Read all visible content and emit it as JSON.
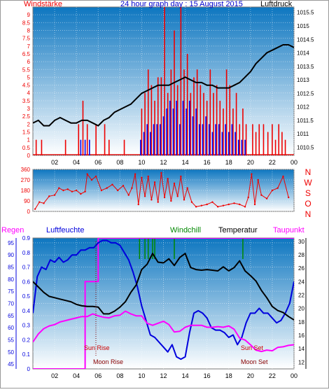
{
  "title": "24 hour graph day : 15 August 2015",
  "colors": {
    "wind": "#ee0000",
    "gust": "#0000ee",
    "pressure": "#000000",
    "humidity": "#0000dd",
    "temperature": "#000000",
    "windchill": "#008800",
    "dewpoint": "#ff00ff",
    "rain": "#ff00ff",
    "sun": "#cc0000",
    "moon": "#880000",
    "plotTop": "#0d76c0",
    "plotBottom": "#ffffff",
    "frame": "#888888"
  },
  "chart_data": [
    {
      "type": "line",
      "panel": "wind_pressure",
      "labels": {
        "left": "Windstärke",
        "right": "Luftdruck"
      },
      "x_tick_labels": [
        "02",
        "04",
        "06",
        "08",
        "10",
        "12",
        "14",
        "16",
        "18",
        "20",
        "22",
        "00"
      ],
      "y_left": {
        "ylim": [
          0,
          9.5
        ],
        "ticks": [
          "0",
          "0.5",
          "1",
          "1.5",
          "2",
          "2.5",
          "3",
          "3.5",
          "4",
          "4.5",
          "5",
          "5.5",
          "6",
          "6.5",
          "7",
          "7.5",
          "8",
          "8.5",
          "9"
        ]
      },
      "y_right": {
        "ylim": [
          1010.2,
          1015.7
        ],
        "ticks": [
          "1010.5",
          "1011",
          "1011.5",
          "1012",
          "1012.5",
          "1013",
          "1013.5",
          "1014",
          "1014.5",
          "1015",
          "1015.5"
        ]
      },
      "series": [
        {
          "role": "pressure",
          "x": [
            0,
            0.5,
            1,
            1.5,
            2,
            2.5,
            3,
            3.5,
            4,
            4.5,
            5,
            5.5,
            6,
            6.5,
            7,
            7.5,
            8,
            8.5,
            9,
            9.5,
            10,
            10.5,
            11,
            11.5,
            12,
            12.5,
            13,
            13.5,
            14,
            14.5,
            15,
            15.5,
            16,
            16.5,
            17,
            17.5,
            18,
            18.5,
            19,
            19.5,
            20,
            20.5,
            21,
            21.5,
            22,
            22.5,
            23,
            23.5,
            24
          ],
          "y": [
            1011.4,
            1011.5,
            1011.3,
            1011.3,
            1011.5,
            1011.6,
            1011.5,
            1011.4,
            1011.4,
            1011.5,
            1011.5,
            1011.4,
            1011.3,
            1011.5,
            1011.6,
            1011.8,
            1011.9,
            1012.0,
            1012.1,
            1012.3,
            1012.5,
            1012.6,
            1012.7,
            1012.8,
            1012.8,
            1012.8,
            1012.9,
            1013.0,
            1013.1,
            1013.0,
            1012.9,
            1012.9,
            1012.8,
            1012.8,
            1012.7,
            1012.7,
            1012.7,
            1012.8,
            1012.9,
            1013.1,
            1013.3,
            1013.6,
            1013.8,
            1014.0,
            1014.1,
            1014.2,
            1014.3,
            1014.3,
            1014.2
          ]
        },
        {
          "role": "wind_bars",
          "x": [
            0.3,
            0.8,
            3.0,
            4.2,
            4.6,
            5.0,
            5.8,
            6.6,
            7.0,
            8.4,
            10.0,
            10.3,
            10.6,
            10.9,
            11.2,
            11.5,
            11.8,
            12.1,
            12.4,
            12.7,
            13.0,
            13.3,
            13.6,
            13.9,
            14.2,
            14.5,
            14.8,
            15.1,
            15.4,
            15.7,
            16.0,
            16.3,
            16.6,
            16.9,
            17.2,
            17.5,
            17.8,
            18.1,
            18.4,
            18.7,
            19.0,
            19.3,
            19.6,
            20.2,
            20.5,
            20.8,
            21.2,
            21.6,
            22.0,
            22.3,
            22.6,
            22.9,
            23.2
          ],
          "y": [
            1,
            1,
            1,
            2,
            3.5,
            2,
            2,
            2,
            1,
            1,
            3,
            4,
            5.5,
            4.5,
            3.5,
            5,
            5,
            9.5,
            4,
            5.5,
            8,
            4.5,
            9.5,
            5.5,
            6.5,
            4,
            5,
            5.5,
            4.5,
            4,
            3.5,
            5.5,
            4,
            4.5,
            3.5,
            3,
            5.5,
            4.5,
            3,
            4,
            2,
            3,
            2,
            2,
            1.5,
            2,
            2,
            1.5,
            2,
            1,
            2,
            1.5,
            1
          ]
        },
        {
          "role": "gust_bars",
          "x": [
            4.4,
            4.8,
            5.2,
            9.9,
            10.2,
            10.5,
            10.8,
            11.1,
            11.4,
            11.7,
            12.0,
            12.3,
            12.6,
            12.9,
            13.2,
            13.5,
            13.8,
            14.1,
            14.4,
            14.7,
            15.0,
            15.3,
            15.6,
            15.9,
            16.2,
            16.5,
            16.8,
            17.1,
            17.4,
            17.7,
            18.0,
            18.3,
            18.6,
            18.9,
            19.2,
            19.5
          ],
          "y": [
            1,
            1,
            1,
            1,
            1.5,
            2,
            1.5,
            2,
            2,
            2,
            2.5,
            3,
            3.5,
            3,
            3.5,
            2,
            3.5,
            3,
            3.5,
            2.5,
            3,
            2,
            2,
            2.5,
            2,
            1.5,
            2,
            2,
            1.5,
            2,
            1.5,
            2,
            1.5,
            1,
            1,
            1
          ]
        }
      ]
    },
    {
      "type": "scatter",
      "panel": "wind_direction",
      "y_axis": {
        "ylim": [
          0,
          360
        ],
        "ticks": [
          "0",
          "90",
          "180",
          "270",
          "360"
        ]
      },
      "compass_labels": [
        "N",
        "W",
        "S",
        "O",
        "N"
      ],
      "series": [
        {
          "role": "direction",
          "x": [
            0.2,
            0.6,
            1.0,
            1.5,
            2.0,
            2.4,
            2.8,
            3.2,
            3.6,
            4.0,
            4.4,
            4.8,
            5.0,
            5.4,
            5.8,
            6.3,
            6.8,
            7.3,
            7.8,
            8.3,
            8.8,
            9.1,
            9.4,
            9.7,
            10.0,
            10.3,
            10.6,
            10.9,
            11.2,
            11.5,
            11.8,
            12.1,
            12.4,
            12.7,
            13.0,
            13.3,
            13.6,
            13.9,
            14.2,
            14.6,
            15.0,
            15.5,
            16.0,
            16.5,
            17.0,
            17.5,
            18.0,
            18.5,
            19.0,
            19.5,
            19.8,
            20.1,
            20.4,
            20.7,
            21.0,
            21.5,
            22.0,
            22.5,
            23.0,
            23.5
          ],
          "y": [
            20,
            80,
            70,
            130,
            140,
            200,
            180,
            190,
            170,
            180,
            150,
            170,
            320,
            270,
            300,
            180,
            200,
            230,
            180,
            220,
            140,
            200,
            320,
            60,
            290,
            130,
            300,
            100,
            250,
            80,
            330,
            120,
            280,
            90,
            240,
            130,
            300,
            100,
            200,
            80,
            40,
            50,
            60,
            80,
            40,
            50,
            60,
            70,
            60,
            40,
            120,
            320,
            60,
            270,
            140,
            110,
            180,
            200,
            300,
            120
          ]
        }
      ]
    },
    {
      "type": "line",
      "panel": "humidity_temperature",
      "legend": [
        "Regen",
        "Luftfeuchte",
        "Windchill",
        "Temperatur",
        "Taupunkt"
      ],
      "y_rain": {
        "ylim": [
          0,
          0.9
        ],
        "ticks": [
          "0",
          "0.1",
          "0.2",
          "0.3",
          "0.4",
          "0.5",
          "0.6",
          "0.7",
          "0.8",
          "0.9"
        ]
      },
      "y_humidity": {
        "ylim": [
          43,
          97
        ],
        "ticks": [
          "45",
          "50",
          "55",
          "60",
          "65",
          "70",
          "75",
          "80",
          "85",
          "90",
          "95"
        ]
      },
      "y_temperature": {
        "ylim": [
          11,
          30.5
        ],
        "ticks": [
          "12",
          "14",
          "16",
          "18",
          "20",
          "22",
          "24",
          "26",
          "28",
          "30"
        ]
      },
      "annotations": {
        "sunrise": "Sun Rise",
        "sunset": "Sun Set",
        "moonrise": "Moon Rise",
        "moonset": "Moon Set"
      },
      "series": [
        {
          "role": "humidity",
          "x": [
            0,
            0.4,
            0.8,
            1.2,
            1.6,
            2.0,
            2.4,
            2.8,
            3.2,
            3.6,
            4.0,
            4.4,
            4.8,
            5.2,
            5.6,
            6.0,
            6.4,
            6.8,
            7.2,
            7.6,
            8.0,
            8.4,
            8.8,
            9.2,
            9.6,
            10.0,
            10.4,
            10.8,
            11.2,
            11.6,
            12.0,
            12.4,
            12.8,
            13.2,
            13.6,
            14.0,
            14.4,
            14.8,
            15.2,
            15.6,
            16.0,
            16.4,
            16.8,
            17.2,
            17.6,
            18.0,
            18.4,
            18.8,
            19.2,
            19.6,
            20.0,
            20.4,
            20.8,
            21.2,
            21.6,
            22.0,
            22.4,
            22.8,
            23.2,
            23.6,
            24.0
          ],
          "y": [
            66,
            81,
            85,
            84,
            88,
            87,
            89,
            87,
            88,
            90,
            90,
            92,
            92,
            93,
            93,
            95,
            96,
            96,
            95,
            95,
            94,
            91,
            88,
            83,
            77,
            69,
            63,
            57,
            56,
            54,
            52,
            50,
            53,
            48,
            47,
            48,
            58,
            66,
            67,
            66,
            64,
            60,
            59,
            59,
            58,
            56,
            57,
            53,
            56,
            62,
            66,
            66,
            68,
            66,
            66,
            64,
            62,
            63,
            66,
            70,
            79
          ]
        },
        {
          "role": "temperature",
          "x": [
            0,
            0.5,
            1.0,
            1.5,
            2.0,
            2.5,
            3.0,
            3.5,
            4.0,
            4.5,
            5.0,
            5.5,
            6.0,
            6.5,
            7.0,
            7.5,
            8.0,
            8.5,
            9.0,
            9.5,
            10.0,
            10.5,
            11.0,
            11.5,
            12.0,
            12.5,
            13.0,
            13.5,
            14.0,
            14.5,
            15.0,
            15.5,
            16.0,
            16.5,
            17.0,
            17.5,
            18.0,
            18.5,
            19.0,
            19.5,
            20.0,
            20.5,
            21.0,
            21.5,
            22.0,
            22.5,
            23.0,
            23.5,
            24.0
          ],
          "y": [
            24,
            23.2,
            22.4,
            21.8,
            21.6,
            21.4,
            21.2,
            21.0,
            20.6,
            20.4,
            20.3,
            20.3,
            20.2,
            19.2,
            19.2,
            19.6,
            20.2,
            21.0,
            22.4,
            23.5,
            25.8,
            26.6,
            28.2,
            26.9,
            26.8,
            27.4,
            26.4,
            27.6,
            28.2,
            26.1,
            25.8,
            25.7,
            25.8,
            25.7,
            25.6,
            26.2,
            25.6,
            26.1,
            27.1,
            25.6,
            24.9,
            24.1,
            22.7,
            21.6,
            20.3,
            19.7,
            19.4,
            18.8,
            18.3
          ]
        },
        {
          "role": "dewpoint",
          "x": [
            0,
            0.5,
            1.0,
            1.5,
            2.0,
            2.5,
            3.0,
            3.5,
            4.0,
            4.5,
            5.0,
            5.5,
            6.0,
            6.5,
            7.0,
            7.5,
            8.0,
            8.5,
            9.0,
            9.5,
            10.0,
            10.5,
            11.0,
            11.5,
            12.0,
            12.5,
            13.0,
            13.5,
            14.0,
            14.5,
            15.0,
            15.5,
            16.0,
            16.5,
            17.0,
            17.5,
            18.0,
            18.5,
            19.0,
            19.5,
            20.0,
            20.5,
            21.0,
            21.5,
            22.0,
            22.5,
            23.0,
            23.5,
            24.0
          ],
          "y": [
            15,
            16.2,
            17,
            17.4,
            17.6,
            18,
            18.2,
            18.4,
            18.6,
            18.8,
            18.8,
            19.2,
            18.9,
            18.7,
            18.6,
            18.9,
            19.0,
            19.6,
            19.2,
            18.9,
            18.9,
            17.8,
            17.5,
            17.8,
            18.1,
            17.6,
            16.5,
            16.6,
            17.2,
            17.5,
            17.5,
            17.5,
            17.2,
            17.2,
            17.3,
            17.2,
            17.4,
            16.9,
            15.6,
            15.3,
            14.6,
            13.8,
            13.6,
            13.8,
            13.7,
            14.2,
            14.3,
            14.5,
            14.6
          ]
        },
        {
          "role": "windchill_spikes",
          "x": [
            9.8,
            10.3,
            10.6,
            11.0,
            11.2,
            13.0,
            19.3
          ],
          "y": [
            30.5,
            30.5,
            30.5,
            30.5,
            30.5,
            30.5,
            30.5
          ]
        },
        {
          "role": "rain_cumulative",
          "x": [
            0,
            4.8,
            4.8,
            6.0,
            6.0,
            24.0
          ],
          "y": [
            0,
            0,
            0.6,
            0.6,
            0.9,
            0.9
          ]
        }
      ]
    }
  ]
}
